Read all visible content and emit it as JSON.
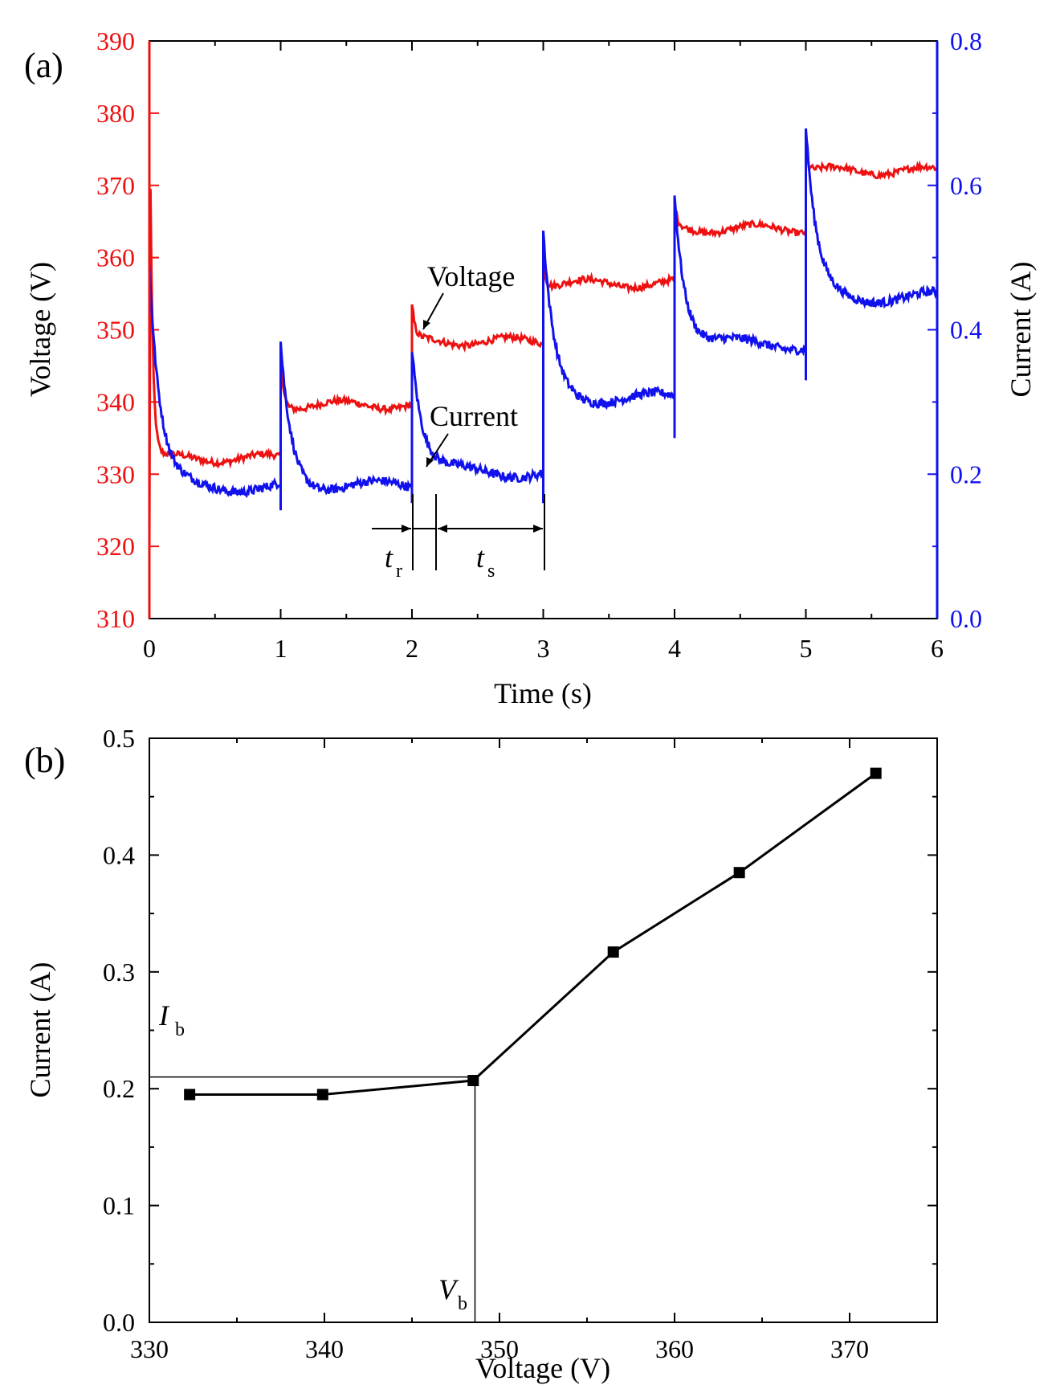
{
  "colors": {
    "voltage": "#ee1111",
    "current": "#1111ee",
    "axis": "#000000",
    "marker": "#000000"
  },
  "chart_data": [
    {
      "panel_label": "(a)",
      "type": "line",
      "xlabel": "Time (s)",
      "ylabel_left": "Voltage (V)",
      "ylabel_right": "Current (A)",
      "xlim": [
        0,
        6
      ],
      "ylim_left": [
        310,
        390
      ],
      "ylim_right": [
        0.0,
        0.8
      ],
      "x_ticks": [
        "0",
        "1",
        "2",
        "3",
        "4",
        "5",
        "6"
      ],
      "y_left_ticks": [
        "310",
        "320",
        "330",
        "340",
        "350",
        "360",
        "370",
        "380",
        "390"
      ],
      "y_right_ticks": [
        "0.0",
        "0.2",
        "0.4",
        "0.6",
        "0.8"
      ],
      "grid": false,
      "series": [
        {
          "name": "Voltage",
          "axis": "left",
          "color": "#ee1111",
          "description": "stepwise voltage with spikes at each step",
          "steps": [
            {
              "t_start": 0,
              "t_end": 1,
              "spike": 389,
              "level": 332.2
            },
            {
              "t_start": 1,
              "t_end": 2,
              "spike": 348,
              "level": 339.6
            },
            {
              "t_start": 2,
              "t_end": 3,
              "spike": 353.5,
              "level": 348.4
            },
            {
              "t_start": 3,
              "t_end": 4,
              "spike": 360,
              "level": 356.4
            },
            {
              "t_start": 4,
              "t_end": 5,
              "spike": 367.5,
              "level": 364.0
            },
            {
              "t_start": 5,
              "t_end": 6,
              "spike": 375,
              "level": 372.0
            }
          ]
        },
        {
          "name": "Current",
          "axis": "right",
          "color": "#1111ee",
          "description": "current response with spike and relaxation after each voltage step",
          "steps": [
            {
              "t_start": 0,
              "t_end": 1,
              "dip": 0.19,
              "spike": 0.49,
              "level": 0.183
            },
            {
              "t_start": 1,
              "t_end": 2,
              "dip": 0.15,
              "spike": 0.38,
              "level": 0.183
            },
            {
              "t_start": 2,
              "t_end": 3,
              "dip": 0.16,
              "spike": 0.38,
              "level": 0.203
            },
            {
              "t_start": 3,
              "t_end": 4,
              "dip": 0.16,
              "spike": 0.53,
              "level": 0.305
            },
            {
              "t_start": 4,
              "t_end": 5,
              "dip": 0.25,
              "spike": 0.595,
              "level": 0.38
            },
            {
              "t_start": 5,
              "t_end": 6,
              "dip": 0.33,
              "spike": 0.675,
              "level": 0.445
            }
          ]
        }
      ],
      "annotations": {
        "voltage_label": "Voltage",
        "current_label": "Current",
        "tr_main": "t",
        "tr_sub": "r",
        "ts_main": "t",
        "ts_sub": "s"
      }
    },
    {
      "panel_label": "(b)",
      "type": "line",
      "xlabel": "Voltage (V)",
      "ylabel": "Current (A)",
      "xlim": [
        330,
        375
      ],
      "ylim": [
        0.0,
        0.5
      ],
      "x_ticks": [
        "330",
        "340",
        "350",
        "360",
        "370"
      ],
      "y_ticks": [
        "0.0",
        "0.1",
        "0.2",
        "0.3",
        "0.4",
        "0.5"
      ],
      "grid": false,
      "x": [
        332.3,
        339.9,
        348.5,
        356.5,
        363.7,
        371.5
      ],
      "y": [
        0.195,
        0.195,
        0.207,
        0.317,
        0.385,
        0.47
      ],
      "annotations": {
        "ib_main": "I",
        "ib_sub": "b",
        "ib_value": 0.21,
        "vb_main": "V",
        "vb_sub": "b",
        "vb_value": 348.6
      }
    }
  ]
}
